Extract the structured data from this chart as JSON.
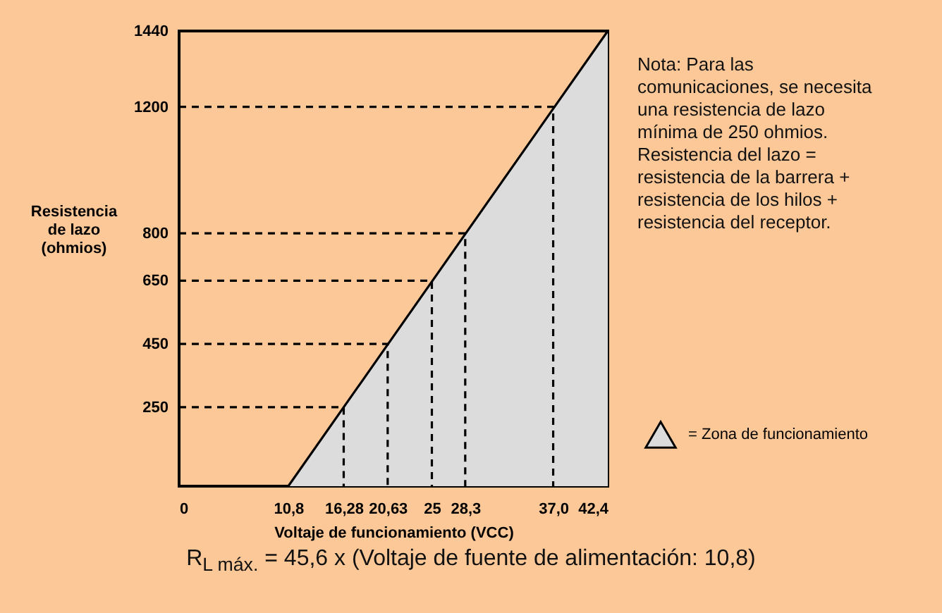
{
  "chart_data": {
    "type": "line",
    "xlabel": "Voltaje de funcionamiento (VCC)",
    "ylabel": "Resistencia\nde lazo\n(ohmios)",
    "xlim": [
      0,
      42.4
    ],
    "xticks": [
      0,
      {
        "value": 10.8,
        "label": "10,8"
      },
      {
        "value": 16.28,
        "label": "16,28"
      },
      {
        "value": 20.63,
        "label": "20,63"
      },
      25,
      {
        "value": 28.3,
        "label": "28,3"
      },
      {
        "value": 37.0,
        "label": "37,0"
      },
      {
        "value": 42.4,
        "label": "42,4"
      }
    ],
    "ylim": [
      0,
      1440
    ],
    "yticks": [
      250,
      450,
      650,
      800,
      1200,
      1440
    ],
    "grid": false,
    "legend": "right",
    "series": [
      {
        "name": "= Zona de funcionamiento",
        "type": "area",
        "color": "#dcdcdc",
        "x": [
          10.8,
          42.4
        ],
        "values": [
          0,
          1440
        ]
      },
      {
        "color": "#000000",
        "x": [
          0,
          10.8,
          42.4
        ],
        "values": [
          0,
          0,
          1440
        ]
      },
      {
        "color": "#000000",
        "line_style": "dashed",
        "x": [
          0,
          16.28,
          16.28
        ],
        "values": [
          250,
          250,
          0
        ]
      },
      {
        "color": "#000000",
        "line_style": "dashed",
        "x": [
          0,
          20.63,
          20.63
        ],
        "values": [
          450,
          450,
          0
        ]
      },
      {
        "color": "#000000",
        "line_style": "dashed",
        "x": [
          0,
          25,
          25
        ],
        "values": [
          650,
          650,
          0
        ]
      },
      {
        "color": "#000000",
        "line_style": "dashed",
        "x": [
          0,
          28.3,
          28.3
        ],
        "values": [
          800,
          800,
          0
        ]
      },
      {
        "color": "#000000",
        "line_style": "dashed",
        "x": [
          0,
          37.0,
          37.0
        ],
        "values": [
          1200,
          1200,
          0
        ]
      }
    ],
    "annotations": [
      "Nota: Para las\ncomunicaciones, se necesita\nuna resistencia de lazo\nmínima de 250 ohmios.\nResistencia del lazo =\nresistencia de la barrera +\nresistencia de los hilos +\nresistencia del receptor.",
      "R$_{L máx.}$ = 45,6 x (Voltaje de fuente de alimentación: 10,8)"
    ]
  }
}
